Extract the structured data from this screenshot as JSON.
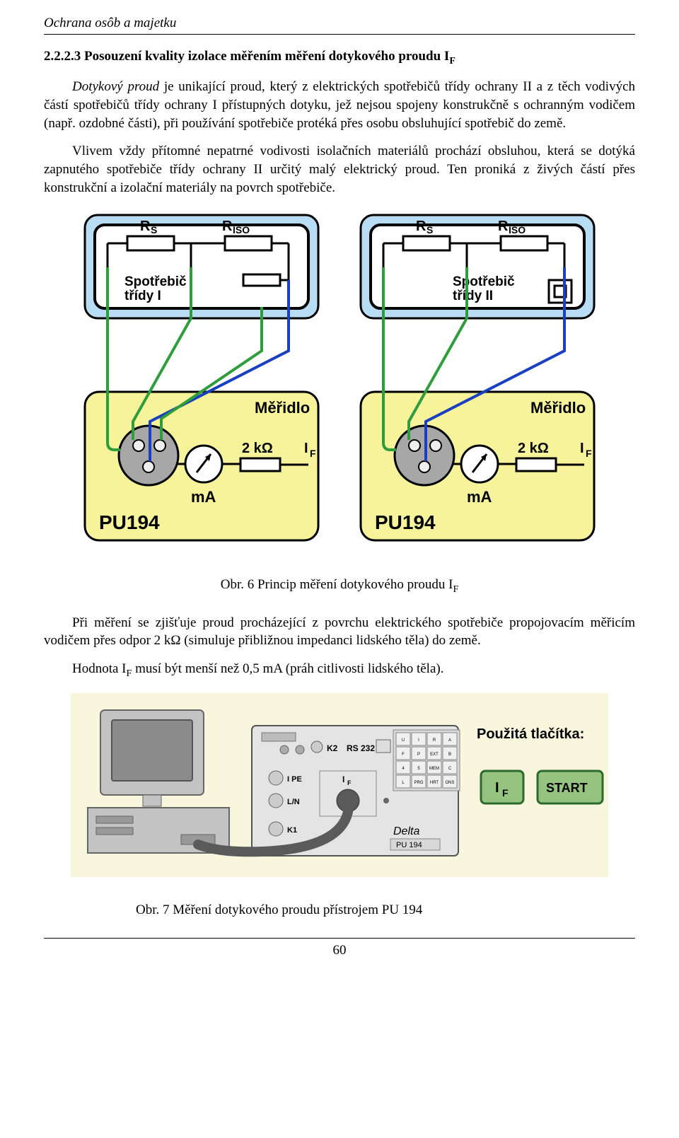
{
  "header": {
    "title": "Ochrana osôb a majetku"
  },
  "section": {
    "number": "2.2.2.3",
    "heading": "Posouzení kvality izolace měřením měření dotykového proudu I",
    "heading_sub": "F"
  },
  "paragraphs": {
    "p1_a": "Dotykový proud",
    "p1_b": " je unikající proud, který z elektrických spotřebičů třídy ochrany II a z těch vodivých částí spotřebičů třídy ochrany I přístupných dotyku, jež nejsou spojeny konstrukčně s ochranným vodičem (např. ozdobné části), při používání spotřebiče protéká přes osobu obsluhující spotřebič do země.",
    "p2": "Vlivem vždy přítomné nepatrné vodivosti isolačních materiálů prochází obsluhou, která se dotýká zapnutého spotřebiče třídy ochrany II určitý malý elektrický proud. Ten proniká z živých částí přes konstrukční a izolační materiály na povrch spotřebiče.",
    "p3": "Při měření se zjišťuje proud procházející z povrchu elektrického spotřebiče propojovacím měřicím vodičem přes odpor 2 kΩ (simuluje přibližnou impedanci lidského těla) do země.",
    "p4_a": "Hodnota I",
    "p4_sub": "F",
    "p4_b": " musí být menší než 0,5 mA (práh citlivosti lidského těla)."
  },
  "fig6": {
    "caption_a": "Obr. 6  Princip měření dotykového proudu I",
    "caption_sub": "F",
    "left": {
      "rs": "R",
      "rs_sub": "S",
      "riso": "R",
      "riso_sub": "ISO",
      "appliance": "Spotřebič",
      "appliance2": "třídy I",
      "meter": "Měřidlo",
      "res": "2 kΩ",
      "if": "I",
      "if_sub": "F",
      "ma": "mA",
      "dev": "PU194"
    },
    "right": {
      "rs": "R",
      "rs_sub": "S",
      "riso": "R",
      "riso_sub": "ISO",
      "appliance": "Spotřebič",
      "appliance2": "třídy II",
      "meter": "Měřidlo",
      "res": "2 kΩ",
      "if": "I",
      "if_sub": "F",
      "ma": "mA",
      "dev": "PU194"
    },
    "colors": {
      "blue_box_fill": "#b9dcf5",
      "yellow_box_fill": "#f6f39a",
      "stroke": "#000000",
      "green_wire": "#2f9d3c",
      "blue_wire": "#1a3fbf",
      "grey_probe": "#a7a7a7"
    }
  },
  "fig7": {
    "caption": "Obr. 7 Měření dotykového proudu přístrojem PU 194",
    "buttons_title": "Použitá tlačítka:",
    "btn_if": "I",
    "btn_if_sub": "F",
    "btn_start": "START",
    "device": {
      "name": "Delta",
      "model": "PU 194",
      "k1": "K1",
      "k2": "K2",
      "rs232": "RS 232",
      "ipe": "I PE",
      "ln": "L/N",
      "if": "I",
      "if_sub": "F",
      "keypad": [
        "U",
        "I",
        "R",
        "A",
        "F",
        "P",
        "EXT",
        "B",
        "4",
        "5",
        "MEM",
        "C",
        "L",
        "PRG",
        "HRT",
        "ONS"
      ]
    },
    "colors": {
      "bg": "#f8f6dc",
      "grey": "#c3c3c3",
      "dark": "#5a5a5a",
      "panel": "#e4e4e4",
      "btn_fill": "#94c47f",
      "btn_stroke": "#2a6a2a"
    }
  },
  "page_number": "60"
}
